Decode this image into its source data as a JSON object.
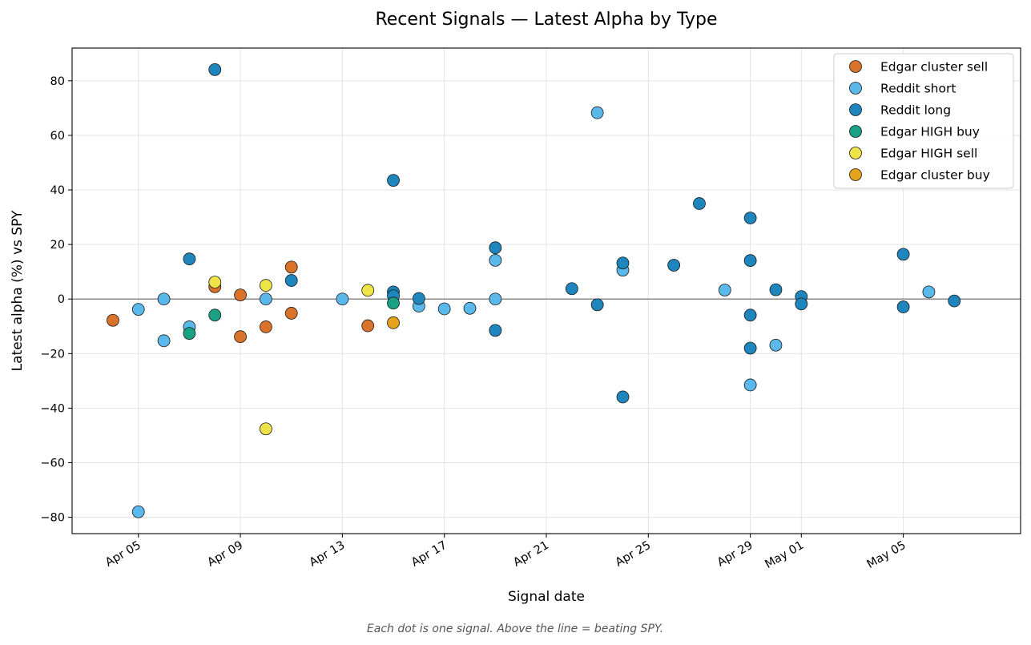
{
  "chart_data": {
    "type": "scatter",
    "title": "Recent Signals — Latest Alpha by Type",
    "xlabel": "Signal date",
    "ylabel": "Latest alpha (%) vs SPY",
    "caption": "Each dot is one signal. Above the line = beating SPY.",
    "xlim": [
      "2025-04-02.4",
      "2025-05-09.6"
    ],
    "ylim": [
      -86,
      92
    ],
    "x_ticks": [
      {
        "date": "2025-04-05",
        "label": "Apr 05"
      },
      {
        "date": "2025-04-09",
        "label": "Apr 09"
      },
      {
        "date": "2025-04-13",
        "label": "Apr 13"
      },
      {
        "date": "2025-04-17",
        "label": "Apr 17"
      },
      {
        "date": "2025-04-21",
        "label": "Apr 21"
      },
      {
        "date": "2025-04-25",
        "label": "Apr 25"
      },
      {
        "date": "2025-04-29",
        "label": "Apr 29"
      },
      {
        "date": "2025-05-01",
        "label": "May 01"
      },
      {
        "date": "2025-05-05",
        "label": "May 05"
      }
    ],
    "y_ticks": [
      {
        "value": 80,
        "label": "80"
      },
      {
        "value": 60,
        "label": "60"
      },
      {
        "value": 40,
        "label": "40"
      },
      {
        "value": 20,
        "label": "20"
      },
      {
        "value": 0,
        "label": "0"
      },
      {
        "value": -20,
        "label": "−20"
      },
      {
        "value": -40,
        "label": "−40"
      },
      {
        "value": -60,
        "label": "−60"
      },
      {
        "value": -80,
        "label": "−80"
      }
    ],
    "grid": true,
    "reference_line_y": 0,
    "legend_position": "top-right",
    "series": [
      {
        "name": "Edgar cluster sell",
        "color": "#d9732a",
        "points": [
          {
            "x": "2025-04-04",
            "y": -7.8
          },
          {
            "x": "2025-04-08",
            "y": 4.5
          },
          {
            "x": "2025-04-09",
            "y": 1.5
          },
          {
            "x": "2025-04-09",
            "y": -13.8
          },
          {
            "x": "2025-04-10",
            "y": -10.2
          },
          {
            "x": "2025-04-11",
            "y": 11.7
          },
          {
            "x": "2025-04-11",
            "y": -5.2
          },
          {
            "x": "2025-04-14",
            "y": -9.8
          }
        ]
      },
      {
        "name": "Reddit short",
        "color": "#5bb8ea",
        "points": [
          {
            "x": "2025-04-05",
            "y": -3.8
          },
          {
            "x": "2025-04-05",
            "y": -78.0
          },
          {
            "x": "2025-04-06",
            "y": 0.0
          },
          {
            "x": "2025-04-06",
            "y": -15.3
          },
          {
            "x": "2025-04-07",
            "y": -10.2
          },
          {
            "x": "2025-04-10",
            "y": 0.0
          },
          {
            "x": "2025-04-13",
            "y": 0.0
          },
          {
            "x": "2025-04-16",
            "y": -2.6
          },
          {
            "x": "2025-04-17",
            "y": -3.6
          },
          {
            "x": "2025-04-18",
            "y": -3.4
          },
          {
            "x": "2025-04-19",
            "y": 14.2
          },
          {
            "x": "2025-04-19",
            "y": 0.0
          },
          {
            "x": "2025-04-23",
            "y": 68.3
          },
          {
            "x": "2025-04-24",
            "y": 10.6
          },
          {
            "x": "2025-04-28",
            "y": 3.3
          },
          {
            "x": "2025-04-29",
            "y": -31.5
          },
          {
            "x": "2025-04-30",
            "y": -16.9
          },
          {
            "x": "2025-05-06",
            "y": 2.6
          }
        ]
      },
      {
        "name": "Reddit long",
        "color": "#1f85bd",
        "points": [
          {
            "x": "2025-04-07",
            "y": 14.7
          },
          {
            "x": "2025-04-08",
            "y": 84.1
          },
          {
            "x": "2025-04-11",
            "y": 6.8
          },
          {
            "x": "2025-04-15",
            "y": 43.5
          },
          {
            "x": "2025-04-15",
            "y": 2.6
          },
          {
            "x": "2025-04-15",
            "y": 1.2
          },
          {
            "x": "2025-04-16",
            "y": 0.2
          },
          {
            "x": "2025-04-19",
            "y": 18.8
          },
          {
            "x": "2025-04-19",
            "y": -11.5
          },
          {
            "x": "2025-04-22",
            "y": 3.8
          },
          {
            "x": "2025-04-23",
            "y": -2.1
          },
          {
            "x": "2025-04-24",
            "y": 13.2
          },
          {
            "x": "2025-04-24",
            "y": -35.9
          },
          {
            "x": "2025-04-26",
            "y": 12.4
          },
          {
            "x": "2025-04-27",
            "y": 35.0
          },
          {
            "x": "2025-04-29",
            "y": 29.7
          },
          {
            "x": "2025-04-29",
            "y": 14.1
          },
          {
            "x": "2025-04-29",
            "y": -5.9
          },
          {
            "x": "2025-04-29",
            "y": -18.0
          },
          {
            "x": "2025-04-30",
            "y": 3.4
          },
          {
            "x": "2025-05-01",
            "y": 0.9
          },
          {
            "x": "2025-05-01",
            "y": -1.8
          },
          {
            "x": "2025-05-05",
            "y": 16.4
          },
          {
            "x": "2025-05-05",
            "y": -2.9
          },
          {
            "x": "2025-05-07",
            "y": -0.7
          }
        ]
      },
      {
        "name": "Edgar HIGH buy",
        "color": "#1aa184",
        "points": [
          {
            "x": "2025-04-07",
            "y": -12.6
          },
          {
            "x": "2025-04-08",
            "y": -5.9
          },
          {
            "x": "2025-04-15",
            "y": -1.5
          }
        ]
      },
      {
        "name": "Edgar HIGH sell",
        "color": "#efe34a",
        "points": [
          {
            "x": "2025-04-08",
            "y": 6.2
          },
          {
            "x": "2025-04-10",
            "y": 5.0
          },
          {
            "x": "2025-04-10",
            "y": -47.6
          },
          {
            "x": "2025-04-14",
            "y": 3.2
          }
        ]
      },
      {
        "name": "Edgar cluster buy",
        "color": "#e6a11d",
        "points": [
          {
            "x": "2025-04-15",
            "y": -8.7
          }
        ]
      }
    ]
  }
}
